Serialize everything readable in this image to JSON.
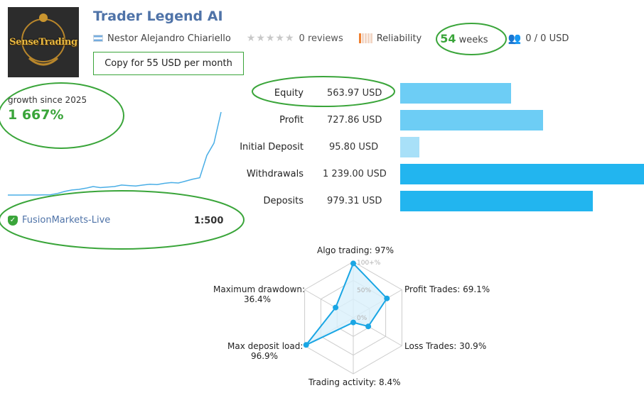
{
  "header": {
    "logo_text": "SenseTrading",
    "title": "Trader Legend AI",
    "author": "Nestor Alejandro Chiariello",
    "author_flag": "argentina-flag-icon",
    "reviews": "0 reviews",
    "reliability_label": "Reliability",
    "weeks_value": "54",
    "weeks_label": "weeks",
    "subscribers": "0 / 0 USD",
    "copy_button": "Copy for 55 USD per month"
  },
  "growth": {
    "label": "growth since 2025",
    "value": "1 667%"
  },
  "account": {
    "broker": "FusionMarkets-Live",
    "leverage": "1:500"
  },
  "stats": [
    {
      "label": "Equity",
      "value": "563.97 USD",
      "amount": 563.97,
      "color": "#6dcdf5"
    },
    {
      "label": "Profit",
      "value": "727.86 USD",
      "amount": 727.86,
      "color": "#6dcdf5"
    },
    {
      "label": "Initial Deposit",
      "value": "95.80 USD",
      "amount": 95.8,
      "color": "#a8e0f8"
    },
    {
      "label": "Withdrawals",
      "value": "1 239.00 USD",
      "amount": 1239.0,
      "color": "#22b5ef"
    },
    {
      "label": "Deposits",
      "value": "979.31 USD",
      "amount": 979.31,
      "color": "#22b5ef"
    }
  ],
  "growth_chart": {
    "points": [
      0,
      0,
      0,
      0.3,
      0.2,
      0.5,
      0.8,
      2.5,
      5,
      7,
      8,
      10,
      13,
      11,
      12,
      13,
      16,
      15,
      14,
      16,
      18,
      17,
      20,
      22,
      21,
      26,
      32,
      37,
      200,
      400,
      1667
    ]
  },
  "radar": {
    "scale_labels": [
      "100+%",
      "50%",
      "0%"
    ],
    "axes": [
      {
        "label": "Algo trading: 97%",
        "value": 97
      },
      {
        "label": "Profit Trades: 69.1%",
        "value": 69.1
      },
      {
        "label": "Loss Trades: 30.9%",
        "value": 30.9
      },
      {
        "label": "Trading activity: 8.4%",
        "value": 8.4
      },
      {
        "label_line1": "Max deposit load:",
        "label_line2": "96.9%",
        "value": 96.9
      },
      {
        "label_line1": "Maximum drawdown:",
        "label_line2": "36.4%",
        "value": 36.4
      }
    ],
    "line_color": "#1aa6e4",
    "fill_color": "#d9f0fb",
    "grid_color": "#cccccc"
  },
  "colors": {
    "title": "#4f73a8",
    "green_accent": "#3aa53a",
    "annotation_circle": "#3aa53a",
    "growth_line": "#4aaee6"
  }
}
